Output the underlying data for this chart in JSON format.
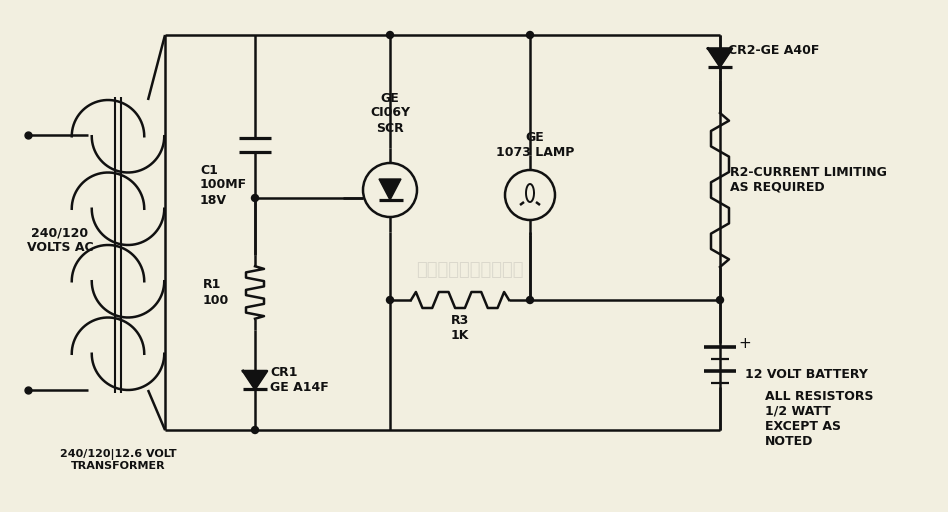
{
  "bg_color": "#f2efe0",
  "line_color": "#111111",
  "text_color": "#111111",
  "annotations": {
    "volts_ac": "240/120\nVOLTS AC",
    "transformer_label": "240/120|12.6 VOLT\nTRANSFORMER",
    "c1": "C1\n100MF\n18V",
    "r1": "R1\n100",
    "cr1": "CR1\nGE A14F",
    "r3": "R3\n1K",
    "scr_label": "GE\nCI06Y\nSCR",
    "lamp_label": "GE\n1073 LAMP",
    "cr2": "CR2-GE A40F",
    "r2": "R2-CURRENT LIMITING\nAS REQUIRED",
    "battery": "12 VOLT BATTERY",
    "note": "ALL RESISTORS\n1/2 WATT\nEXCEPT AS\nNOTED"
  }
}
